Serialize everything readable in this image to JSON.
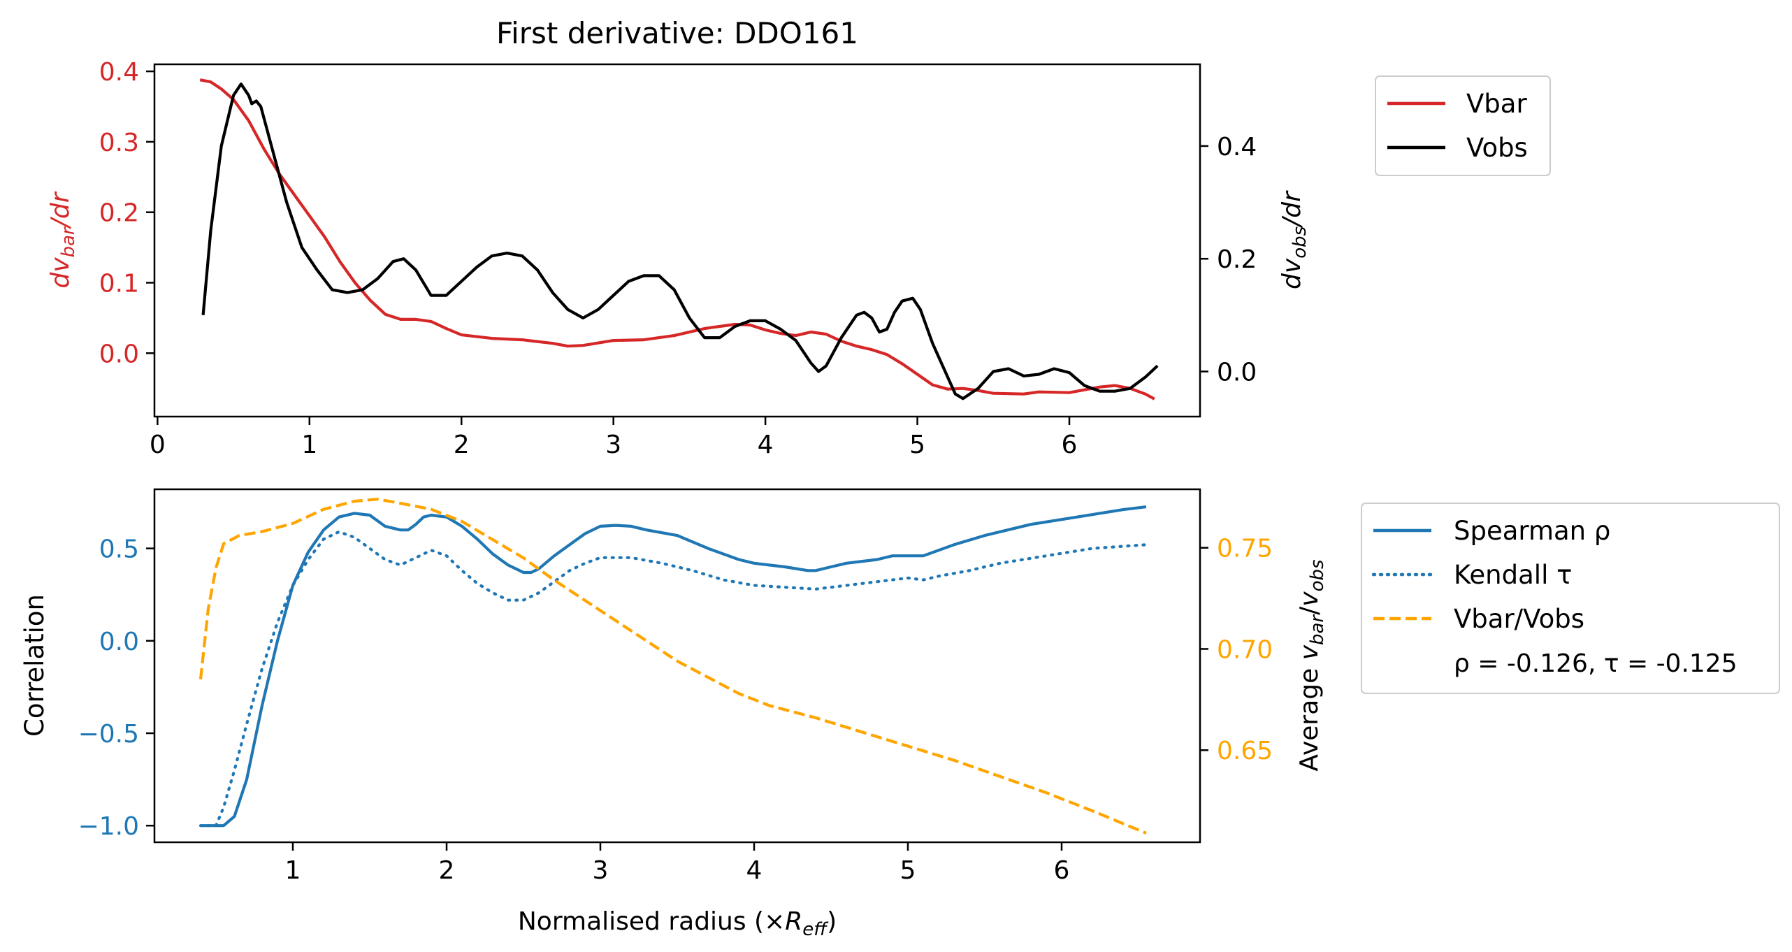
{
  "colors": {
    "vbar": "#d62728",
    "vobs": "#000000",
    "spearman": "#1f77b4",
    "kendall": "#1f77b4",
    "ratio": "#ffa500",
    "axis": "#000000"
  },
  "chart_data": [
    {
      "type": "line",
      "title": "First derivative: DDO161",
      "xlabel": "",
      "ylabel_left": "dv_bar/dr",
      "ylabel_right": "dv_obs/dr",
      "xlim": [
        -0.02,
        6.86
      ],
      "ylim_left": [
        -0.09,
        0.41
      ],
      "ylim_right": [
        -0.08,
        0.545
      ],
      "x_ticks": [
        "0",
        "1",
        "2",
        "3",
        "4",
        "5",
        "6"
      ],
      "y_ticks_left": [
        "0.4",
        "0.3",
        "0.2",
        "0.1",
        "0.0"
      ],
      "y_ticks_right": [
        "0.4",
        "0.2",
        "0.0"
      ],
      "legend": {
        "position": "outside-right-top",
        "entries": [
          "Vbar",
          "Vobs"
        ]
      },
      "series": [
        {
          "name": "Vbar",
          "axis": "left",
          "points": [
            [
              0.28,
              0.388
            ],
            [
              0.35,
              0.385
            ],
            [
              0.42,
              0.375
            ],
            [
              0.5,
              0.36
            ],
            [
              0.6,
              0.33
            ],
            [
              0.7,
              0.29
            ],
            [
              0.8,
              0.255
            ],
            [
              0.9,
              0.225
            ],
            [
              1.0,
              0.195
            ],
            [
              1.1,
              0.165
            ],
            [
              1.2,
              0.13
            ],
            [
              1.3,
              0.1
            ],
            [
              1.4,
              0.075
            ],
            [
              1.5,
              0.055
            ],
            [
              1.6,
              0.048
            ],
            [
              1.7,
              0.048
            ],
            [
              1.8,
              0.045
            ],
            [
              1.9,
              0.035
            ],
            [
              2.0,
              0.026
            ],
            [
              2.2,
              0.021
            ],
            [
              2.4,
              0.019
            ],
            [
              2.6,
              0.014
            ],
            [
              2.7,
              0.01
            ],
            [
              2.8,
              0.011
            ],
            [
              3.0,
              0.018
            ],
            [
              3.2,
              0.019
            ],
            [
              3.4,
              0.025
            ],
            [
              3.6,
              0.035
            ],
            [
              3.8,
              0.041
            ],
            [
              3.9,
              0.04
            ],
            [
              4.0,
              0.033
            ],
            [
              4.1,
              0.028
            ],
            [
              4.2,
              0.025
            ],
            [
              4.3,
              0.03
            ],
            [
              4.4,
              0.027
            ],
            [
              4.5,
              0.017
            ],
            [
              4.6,
              0.01
            ],
            [
              4.7,
              0.005
            ],
            [
              4.8,
              -0.002
            ],
            [
              4.9,
              -0.015
            ],
            [
              5.0,
              -0.03
            ],
            [
              5.1,
              -0.045
            ],
            [
              5.2,
              -0.051
            ],
            [
              5.3,
              -0.05
            ],
            [
              5.4,
              -0.053
            ],
            [
              5.5,
              -0.057
            ],
            [
              5.7,
              -0.058
            ],
            [
              5.8,
              -0.055
            ],
            [
              6.0,
              -0.056
            ],
            [
              6.1,
              -0.052
            ],
            [
              6.2,
              -0.048
            ],
            [
              6.3,
              -0.046
            ],
            [
              6.4,
              -0.05
            ],
            [
              6.5,
              -0.058
            ],
            [
              6.56,
              -0.065
            ]
          ]
        },
        {
          "name": "Vobs",
          "axis": "right",
          "points": [
            [
              0.3,
              0.1
            ],
            [
              0.35,
              0.25
            ],
            [
              0.42,
              0.4
            ],
            [
              0.5,
              0.49
            ],
            [
              0.55,
              0.51
            ],
            [
              0.6,
              0.49
            ],
            [
              0.62,
              0.475
            ],
            [
              0.65,
              0.48
            ],
            [
              0.68,
              0.47
            ],
            [
              0.75,
              0.4
            ],
            [
              0.85,
              0.3
            ],
            [
              0.95,
              0.22
            ],
            [
              1.05,
              0.18
            ],
            [
              1.15,
              0.145
            ],
            [
              1.25,
              0.14
            ],
            [
              1.35,
              0.145
            ],
            [
              1.45,
              0.165
            ],
            [
              1.55,
              0.195
            ],
            [
              1.62,
              0.2
            ],
            [
              1.7,
              0.18
            ],
            [
              1.8,
              0.135
            ],
            [
              1.9,
              0.135
            ],
            [
              2.0,
              0.16
            ],
            [
              2.1,
              0.185
            ],
            [
              2.2,
              0.205
            ],
            [
              2.3,
              0.21
            ],
            [
              2.4,
              0.205
            ],
            [
              2.5,
              0.18
            ],
            [
              2.6,
              0.14
            ],
            [
              2.7,
              0.11
            ],
            [
              2.8,
              0.095
            ],
            [
              2.9,
              0.11
            ],
            [
              3.0,
              0.135
            ],
            [
              3.1,
              0.16
            ],
            [
              3.2,
              0.17
            ],
            [
              3.3,
              0.17
            ],
            [
              3.4,
              0.145
            ],
            [
              3.5,
              0.095
            ],
            [
              3.6,
              0.06
            ],
            [
              3.7,
              0.06
            ],
            [
              3.8,
              0.08
            ],
            [
              3.9,
              0.09
            ],
            [
              4.0,
              0.09
            ],
            [
              4.1,
              0.075
            ],
            [
              4.2,
              0.055
            ],
            [
              4.3,
              0.015
            ],
            [
              4.35,
              0.0
            ],
            [
              4.4,
              0.01
            ],
            [
              4.5,
              0.06
            ],
            [
              4.6,
              0.1
            ],
            [
              4.65,
              0.105
            ],
            [
              4.7,
              0.095
            ],
            [
              4.75,
              0.07
            ],
            [
              4.8,
              0.075
            ],
            [
              4.85,
              0.105
            ],
            [
              4.9,
              0.125
            ],
            [
              4.97,
              0.13
            ],
            [
              5.02,
              0.11
            ],
            [
              5.1,
              0.05
            ],
            [
              5.2,
              -0.01
            ],
            [
              5.25,
              -0.04
            ],
            [
              5.3,
              -0.048
            ],
            [
              5.4,
              -0.03
            ],
            [
              5.5,
              0.0
            ],
            [
              5.6,
              0.005
            ],
            [
              5.7,
              -0.008
            ],
            [
              5.8,
              -0.005
            ],
            [
              5.9,
              0.005
            ],
            [
              6.0,
              -0.002
            ],
            [
              6.1,
              -0.025
            ],
            [
              6.2,
              -0.035
            ],
            [
              6.3,
              -0.035
            ],
            [
              6.4,
              -0.03
            ],
            [
              6.5,
              -0.01
            ],
            [
              6.58,
              0.01
            ]
          ]
        }
      ]
    },
    {
      "type": "line",
      "title": "",
      "xlabel": "Normalised radius (×R_eff)",
      "ylabel_left": "Correlation",
      "ylabel_right": "Average v_bar/v_obs",
      "xlim": [
        0.1,
        6.9
      ],
      "ylim_left": [
        -1.09,
        0.82
      ],
      "ylim_right": [
        0.6045,
        0.7789
      ],
      "x_ticks": [
        "1",
        "2",
        "3",
        "4",
        "5",
        "6"
      ],
      "y_ticks_left": [
        "0.5",
        "0.0",
        "−0.5",
        "−1.0"
      ],
      "y_ticks_right": [
        "0.75",
        "0.70",
        "0.65"
      ],
      "legend": {
        "position": "outside-right-top",
        "entries": [
          "Spearman ρ",
          "Kendall τ",
          "Vbar/Vobs"
        ],
        "note": "ρ = -0.126, τ = -0.125"
      },
      "series": [
        {
          "name": "Spearman ρ",
          "axis": "left",
          "style": "solid",
          "points": [
            [
              0.4,
              -1.0
            ],
            [
              0.55,
              -1.0
            ],
            [
              0.62,
              -0.95
            ],
            [
              0.7,
              -0.75
            ],
            [
              0.8,
              -0.35
            ],
            [
              0.9,
              0.0
            ],
            [
              1.0,
              0.3
            ],
            [
              1.1,
              0.48
            ],
            [
              1.2,
              0.6
            ],
            [
              1.3,
              0.67
            ],
            [
              1.4,
              0.69
            ],
            [
              1.5,
              0.68
            ],
            [
              1.6,
              0.62
            ],
            [
              1.7,
              0.6
            ],
            [
              1.75,
              0.6
            ],
            [
              1.8,
              0.63
            ],
            [
              1.85,
              0.67
            ],
            [
              1.9,
              0.68
            ],
            [
              2.0,
              0.67
            ],
            [
              2.1,
              0.62
            ],
            [
              2.2,
              0.55
            ],
            [
              2.3,
              0.47
            ],
            [
              2.4,
              0.41
            ],
            [
              2.5,
              0.37
            ],
            [
              2.55,
              0.37
            ],
            [
              2.6,
              0.39
            ],
            [
              2.7,
              0.46
            ],
            [
              2.8,
              0.52
            ],
            [
              2.9,
              0.58
            ],
            [
              3.0,
              0.62
            ],
            [
              3.1,
              0.625
            ],
            [
              3.2,
              0.62
            ],
            [
              3.3,
              0.6
            ],
            [
              3.5,
              0.57
            ],
            [
              3.7,
              0.5
            ],
            [
              3.9,
              0.44
            ],
            [
              4.0,
              0.42
            ],
            [
              4.2,
              0.4
            ],
            [
              4.35,
              0.38
            ],
            [
              4.4,
              0.38
            ],
            [
              4.5,
              0.4
            ],
            [
              4.6,
              0.42
            ],
            [
              4.8,
              0.44
            ],
            [
              4.9,
              0.46
            ],
            [
              5.1,
              0.46
            ],
            [
              5.3,
              0.52
            ],
            [
              5.5,
              0.57
            ],
            [
              5.8,
              0.63
            ],
            [
              6.1,
              0.67
            ],
            [
              6.4,
              0.71
            ],
            [
              6.55,
              0.725
            ]
          ]
        },
        {
          "name": "Kendall τ",
          "axis": "left",
          "style": "dotted",
          "points": [
            [
              0.4,
              -1.0
            ],
            [
              0.5,
              -1.0
            ],
            [
              0.55,
              -0.9
            ],
            [
              0.62,
              -0.7
            ],
            [
              0.7,
              -0.45
            ],
            [
              0.8,
              -0.15
            ],
            [
              0.9,
              0.1
            ],
            [
              1.0,
              0.3
            ],
            [
              1.1,
              0.44
            ],
            [
              1.2,
              0.55
            ],
            [
              1.3,
              0.59
            ],
            [
              1.4,
              0.56
            ],
            [
              1.5,
              0.5
            ],
            [
              1.6,
              0.44
            ],
            [
              1.7,
              0.41
            ],
            [
              1.8,
              0.45
            ],
            [
              1.9,
              0.49
            ],
            [
              2.0,
              0.46
            ],
            [
              2.1,
              0.38
            ],
            [
              2.2,
              0.31
            ],
            [
              2.3,
              0.26
            ],
            [
              2.4,
              0.22
            ],
            [
              2.5,
              0.22
            ],
            [
              2.6,
              0.26
            ],
            [
              2.7,
              0.32
            ],
            [
              2.8,
              0.38
            ],
            [
              2.9,
              0.42
            ],
            [
              3.0,
              0.45
            ],
            [
              3.2,
              0.45
            ],
            [
              3.4,
              0.42
            ],
            [
              3.6,
              0.38
            ],
            [
              3.8,
              0.33
            ],
            [
              4.0,
              0.3
            ],
            [
              4.2,
              0.29
            ],
            [
              4.4,
              0.28
            ],
            [
              4.6,
              0.3
            ],
            [
              4.8,
              0.32
            ],
            [
              5.0,
              0.34
            ],
            [
              5.1,
              0.33
            ],
            [
              5.2,
              0.35
            ],
            [
              5.4,
              0.38
            ],
            [
              5.6,
              0.42
            ],
            [
              5.9,
              0.46
            ],
            [
              6.2,
              0.5
            ],
            [
              6.55,
              0.52
            ]
          ]
        },
        {
          "name": "Vbar/Vobs",
          "axis": "right",
          "style": "dashed",
          "points": [
            [
              0.4,
              0.685
            ],
            [
              0.45,
              0.72
            ],
            [
              0.5,
              0.74
            ],
            [
              0.55,
              0.752
            ],
            [
              0.65,
              0.756
            ],
            [
              0.8,
              0.758
            ],
            [
              1.0,
              0.762
            ],
            [
              1.2,
              0.769
            ],
            [
              1.4,
              0.773
            ],
            [
              1.55,
              0.774
            ],
            [
              1.7,
              0.772
            ],
            [
              1.9,
              0.769
            ],
            [
              2.1,
              0.763
            ],
            [
              2.3,
              0.754
            ],
            [
              2.5,
              0.745
            ],
            [
              2.7,
              0.734
            ],
            [
              2.9,
              0.724
            ],
            [
              3.1,
              0.714
            ],
            [
              3.3,
              0.704
            ],
            [
              3.5,
              0.694
            ],
            [
              3.7,
              0.686
            ],
            [
              3.9,
              0.678
            ],
            [
              4.1,
              0.672
            ],
            [
              4.4,
              0.666
            ],
            [
              4.7,
              0.659
            ],
            [
              5.0,
              0.652
            ],
            [
              5.3,
              0.645
            ],
            [
              5.6,
              0.637
            ],
            [
              5.9,
              0.629
            ],
            [
              6.2,
              0.62
            ],
            [
              6.55,
              0.609
            ]
          ]
        }
      ]
    }
  ]
}
